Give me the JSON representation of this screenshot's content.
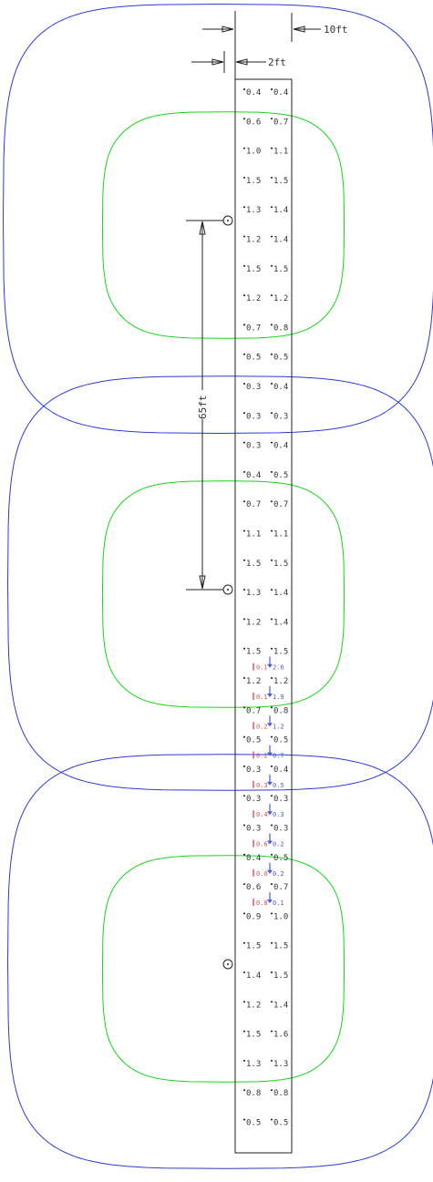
{
  "colors": {
    "outer_contour": "#2b3bd8",
    "inner_contour": "#19d419",
    "linework": "#222222",
    "red_values": "#e05050",
    "blue_values": "#4a5ad8"
  },
  "dimensions": {
    "offset_10ft": "10ft",
    "width_2ft": "2ft",
    "spacing_65ft": "65ft"
  },
  "grid": {
    "rows": [
      [
        "0.4",
        "0.4"
      ],
      [
        "0.6",
        "0.7"
      ],
      [
        "1.0",
        "1.1"
      ],
      [
        "1.5",
        "1.5"
      ],
      [
        "1.3",
        "1.4"
      ],
      [
        "1.2",
        "1.4"
      ],
      [
        "1.5",
        "1.5"
      ],
      [
        "1.2",
        "1.2"
      ],
      [
        "0.7",
        "0.8"
      ],
      [
        "0.5",
        "0.5"
      ],
      [
        "0.3",
        "0.4"
      ],
      [
        "0.3",
        "0.3"
      ],
      [
        "0.3",
        "0.4"
      ],
      [
        "0.4",
        "0.5"
      ],
      [
        "0.7",
        "0.7"
      ],
      [
        "1.1",
        "1.1"
      ],
      [
        "1.5",
        "1.5"
      ],
      [
        "1.3",
        "1.4"
      ],
      [
        "1.2",
        "1.4"
      ],
      [
        "1.5",
        "1.5"
      ],
      [
        "1.2",
        "1.2"
      ],
      [
        "0.7",
        "0.8"
      ],
      [
        "0.5",
        "0.5"
      ],
      [
        "0.3",
        "0.4"
      ],
      [
        "0.3",
        "0.3"
      ],
      [
        "0.3",
        "0.3"
      ],
      [
        "0.4",
        "0.5"
      ],
      [
        "0.6",
        "0.7"
      ],
      [
        "0.9",
        "1.0"
      ],
      [
        "1.5",
        "1.5"
      ],
      [
        "1.4",
        "1.5"
      ],
      [
        "1.2",
        "1.4"
      ],
      [
        "1.5",
        "1.6"
      ],
      [
        "1.3",
        "1.3"
      ],
      [
        "0.8",
        "0.8"
      ],
      [
        "0.5",
        "0.5"
      ]
    ],
    "overlay": [
      [
        "0.1",
        "2.6"
      ],
      [
        "0.1",
        "1.9"
      ],
      [
        "0.2",
        "1.2"
      ],
      [
        "0.2",
        "0.7"
      ],
      [
        "0.3",
        "0.5"
      ],
      [
        "0.4",
        "0.3"
      ],
      [
        "0.6",
        "0.2"
      ],
      [
        "0.0",
        "0.2"
      ],
      [
        "0.8",
        "0.1"
      ]
    ]
  }
}
